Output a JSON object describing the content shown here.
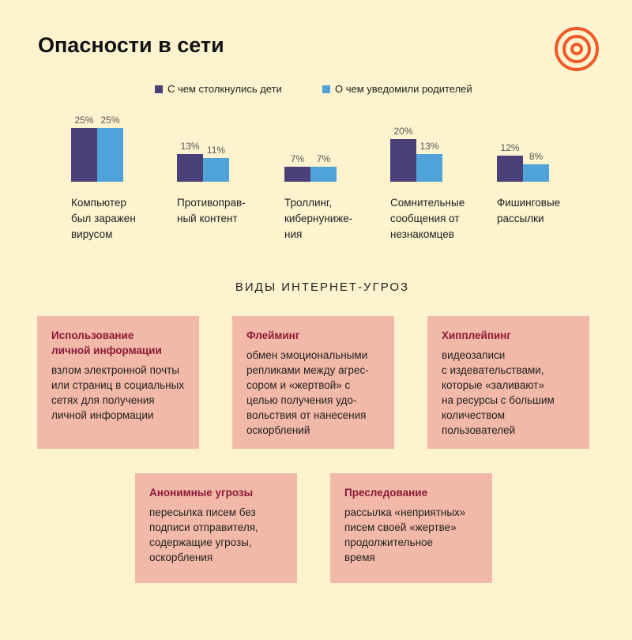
{
  "header": {
    "title": "Опасности в сети"
  },
  "chart_data": {
    "type": "bar",
    "categories": [
      "Компьютер\nбыл заражен\nвирусом",
      "Противоправ-\nный контент",
      "Троллинг,\nкибернуниже-\nния",
      "Сомнительные\nсообщения от\nнезнакомцев",
      "Фишинговые\nрассылки"
    ],
    "series": [
      {
        "name": "С чем столкнулись дети",
        "color": "#4b3f78",
        "values": [
          25,
          13,
          7,
          20,
          12
        ],
        "value_labels": [
          "25%",
          "13%",
          "7%",
          "20%",
          "12%"
        ]
      },
      {
        "name": "О чем уведомили родителей",
        "color": "#4fa3d8",
        "values": [
          25,
          11,
          7,
          13,
          8
        ],
        "value_labels": [
          "25%",
          "11%",
          "7%",
          "13%",
          "8%"
        ]
      }
    ]
  },
  "section": {
    "title": "ВИДЫ ИНТЕРНЕТ-УГРОЗ",
    "cards": [
      {
        "title": "Использование\nличной информации",
        "text": "взлом электронной почты\nили страниц в социальных\nсетях для получения\nличной информации"
      },
      {
        "title": "Флейминг",
        "text": "обмен эмоциональными\nрепликами между агрес-\nсором и «жертвой» с\nцелью получения удо-\nвольствия от нанесения\nоскорблений"
      },
      {
        "title": "Хипплейпинг",
        "text": "видеозаписи\nс издевательствами,\nкоторые «заливают»\nна ресурсы с большим\nколичеством\nпользователей"
      },
      {
        "title": "Анонимные угрозы",
        "text": "пересылка писем без\nподписи отправителя,\nсодержащие угрозы,\nоскорбления"
      },
      {
        "title": "Преследование",
        "text": "рассылка «неприятных»\nписем своей «жертве»\nпродолжительное\nвремя"
      }
    ]
  }
}
